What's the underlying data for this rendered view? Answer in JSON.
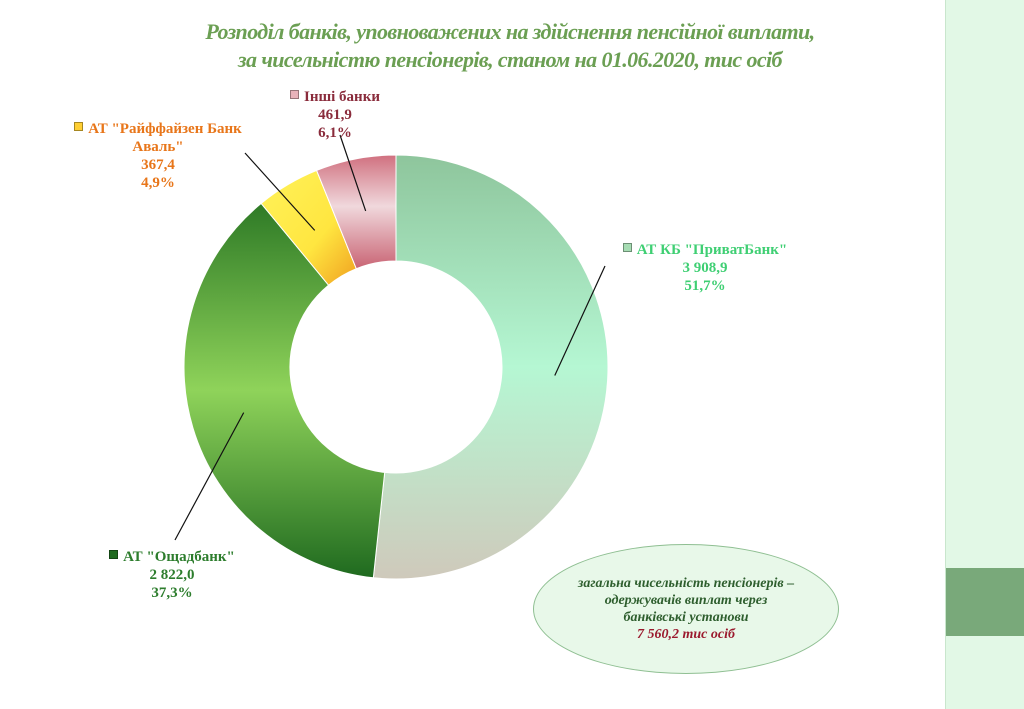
{
  "colors": {
    "title": "#6b9f53",
    "sidebar": "#e2f8e6",
    "sidebar_block": "#79a97a",
    "privat": "#3fcf73",
    "oschad": "#2d7d2d",
    "raiffeisen": "#e8761a",
    "others": "#8a2c3c",
    "total": "#9b1a2e"
  },
  "chart_data": {
    "type": "pie",
    "donut": true,
    "title": "Розподіл банків, уповноважених на здійснення пенсійної виплати, за чисельністю пенсіонерів, станом на 01.06.2020, тис осіб",
    "title_lines": [
      "Розподіл банків, уповноважених на здійснення пенсійної виплати,",
      "за чисельністю пенсіонерів, станом на 01.06.2020, тис осіб"
    ],
    "slices": [
      {
        "name": "АТ КБ \"ПриватБанк\"",
        "value": 3908.9,
        "value_label": "3 908,9",
        "percent": 51.7,
        "percent_label": "51,7%"
      },
      {
        "name": "АТ \"Ощадбанк\"",
        "value": 2822.0,
        "value_label": "2 822,0",
        "percent": 37.3,
        "percent_label": "37,3%"
      },
      {
        "name": "АТ \"Райффайзен Банк Аваль\"",
        "name_lines": [
          "АТ \"Райффайзен Банк",
          "Аваль\""
        ],
        "value": 367.4,
        "value_label": "367,4",
        "percent": 4.9,
        "percent_label": "4,9%"
      },
      {
        "name": "Інші банки",
        "value": 461.9,
        "value_label": "461,9",
        "percent": 6.1,
        "percent_label": "6,1%"
      }
    ],
    "summary": {
      "lines": [
        "загальна чисельність пенсіонерів –",
        "одержувачів виплат через",
        "банківські установи"
      ],
      "total": "7 560,2 тис осіб"
    }
  }
}
